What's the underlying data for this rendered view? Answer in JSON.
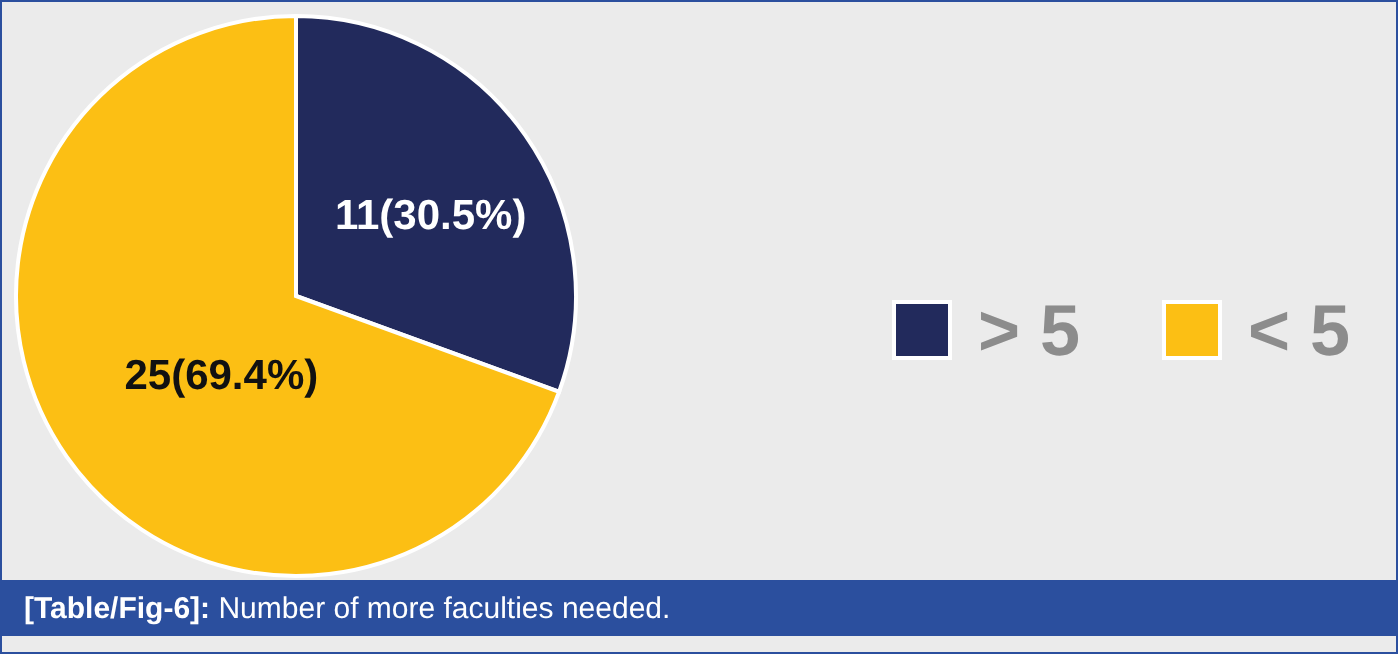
{
  "chart_data": {
    "type": "pie",
    "categories": [
      "> 5",
      "< 5"
    ],
    "values": [
      11,
      25
    ],
    "colors": [
      "#222a5c",
      "#fcbf14"
    ],
    "value_labels": [
      "11(30.5%)",
      "25(69.4%)"
    ],
    "legend": "right",
    "annotations": [
      "[Table/Fig-6]: Number of more faculties needed."
    ]
  }
}
